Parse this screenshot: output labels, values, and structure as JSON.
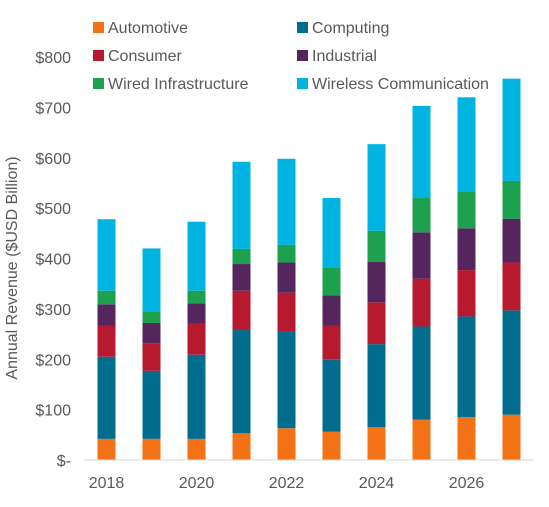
{
  "chart_data": {
    "type": "bar",
    "stacked": true,
    "title": "",
    "xlabel": "",
    "ylabel": "Annual Revenue  ($USD Billion)",
    "ylim": [
      0,
      800
    ],
    "y_ticks": [
      0,
      100,
      200,
      300,
      400,
      500,
      600,
      700,
      800
    ],
    "y_tick_labels": [
      "$-",
      "$100",
      "$200",
      "$300",
      "$400",
      "$500",
      "$600",
      "$700",
      "$800"
    ],
    "x_tick_labels": [
      "2018",
      "2020",
      "2022",
      "2024",
      "2026"
    ],
    "categories": [
      "2018",
      "2019",
      "2020",
      "2021",
      "2022",
      "2023",
      "2024",
      "2025",
      "2026",
      "2027"
    ],
    "grid": false,
    "legend_position": "top",
    "series": [
      {
        "name": "Automotive",
        "color": "#F47216",
        "values": [
          42,
          42,
          42,
          53,
          63,
          56,
          65,
          80,
          85,
          90
        ]
      },
      {
        "name": "Computing",
        "color": "#006C8E",
        "values": [
          163,
          135,
          167,
          205,
          193,
          144,
          165,
          185,
          200,
          207
        ]
      },
      {
        "name": "Consumer",
        "color": "#B7192F",
        "values": [
          62,
          55,
          62,
          78,
          76,
          67,
          83,
          95,
          92,
          95
        ]
      },
      {
        "name": "Industrial",
        "color": "#55265D",
        "values": [
          42,
          40,
          40,
          53,
          60,
          60,
          80,
          92,
          83,
          87
        ]
      },
      {
        "name": "Wired Infrastructure",
        "color": "#1EA14E",
        "values": [
          27,
          23,
          25,
          30,
          35,
          55,
          62,
          68,
          72,
          75
        ]
      },
      {
        "name": "Wireless Communication",
        "color": "#00B4E1",
        "values": [
          142,
          125,
          137,
          173,
          171,
          138,
          172,
          183,
          188,
          203
        ]
      }
    ]
  }
}
